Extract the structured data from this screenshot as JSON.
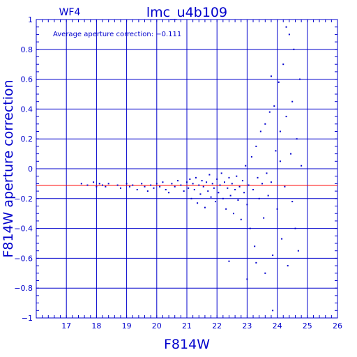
{
  "chart_data": {
    "type": "scatter",
    "title": "lmc_u4b109",
    "chip_label": "WF4",
    "annotation": "Average aperture correction: −0.111",
    "xlabel": "F814W",
    "ylabel": "F814W aperture correction",
    "xlim": [
      16,
      26
    ],
    "ylim": [
      -1,
      1
    ],
    "xticks": [
      "17",
      "18",
      "19",
      "20",
      "21",
      "22",
      "23",
      "24",
      "25",
      "26"
    ],
    "xtick_values": [
      17,
      18,
      19,
      20,
      21,
      22,
      23,
      24,
      25,
      26
    ],
    "yticks": [
      "1",
      "0.8",
      "0.6",
      "0.4",
      "0.2",
      "0",
      "−0.2",
      "−0.4",
      "−0.6",
      "−0.8",
      "−1"
    ],
    "ytick_values": [
      1,
      0.8,
      0.6,
      0.4,
      0.2,
      0,
      -0.2,
      -0.4,
      -0.6,
      -0.8,
      -1
    ],
    "grid": true,
    "reference_line": {
      "y": -0.111,
      "color": "#ff0000"
    },
    "colors": {
      "axes": "#0000cc",
      "points": "#0000cc",
      "reference": "#ff0000"
    },
    "points": [
      [
        17.5,
        -0.1
      ],
      [
        17.7,
        -0.11
      ],
      [
        17.9,
        -0.09
      ],
      [
        18.0,
        -0.12
      ],
      [
        18.1,
        -0.1
      ],
      [
        18.2,
        -0.11
      ],
      [
        18.3,
        -0.12
      ],
      [
        18.4,
        -0.1
      ],
      [
        18.7,
        -0.11
      ],
      [
        18.8,
        -0.13
      ],
      [
        19.0,
        -0.1
      ],
      [
        19.1,
        -0.12
      ],
      [
        19.2,
        -0.11
      ],
      [
        19.35,
        -0.14
      ],
      [
        19.5,
        -0.1
      ],
      [
        19.6,
        -0.12
      ],
      [
        19.7,
        -0.15
      ],
      [
        19.8,
        -0.11
      ],
      [
        19.9,
        -0.13
      ],
      [
        20.0,
        -0.1
      ],
      [
        20.1,
        -0.12
      ],
      [
        20.2,
        -0.09
      ],
      [
        20.3,
        -0.14
      ],
      [
        20.4,
        -0.16
      ],
      [
        20.5,
        -0.1
      ],
      [
        20.6,
        -0.12
      ],
      [
        20.7,
        -0.08
      ],
      [
        20.8,
        -0.11
      ],
      [
        20.9,
        -0.15
      ],
      [
        21.0,
        -0.09
      ],
      [
        21.05,
        -0.13
      ],
      [
        21.1,
        -0.07
      ],
      [
        21.15,
        -0.2
      ],
      [
        21.2,
        -0.1
      ],
      [
        21.25,
        -0.14
      ],
      [
        21.3,
        -0.06
      ],
      [
        21.35,
        -0.23
      ],
      [
        21.4,
        -0.11
      ],
      [
        21.45,
        -0.17
      ],
      [
        21.5,
        -0.08
      ],
      [
        21.55,
        -0.12
      ],
      [
        21.6,
        -0.26
      ],
      [
        21.65,
        -0.09
      ],
      [
        21.7,
        -0.15
      ],
      [
        21.75,
        -0.04
      ],
      [
        21.8,
        -0.19
      ],
      [
        21.85,
        -0.1
      ],
      [
        21.9,
        -0.13
      ],
      [
        21.95,
        -0.22
      ],
      [
        22.0,
        -0.07
      ],
      [
        22.05,
        -0.16
      ],
      [
        22.1,
        -0.11
      ],
      [
        22.15,
        -0.03
      ],
      [
        22.2,
        -0.2
      ],
      [
        22.25,
        -0.09
      ],
      [
        22.3,
        -0.27
      ],
      [
        22.35,
        -0.13
      ],
      [
        22.4,
        -0.06
      ],
      [
        22.45,
        -0.18
      ],
      [
        22.5,
        -0.1
      ],
      [
        22.55,
        -0.3
      ],
      [
        22.6,
        -0.14
      ],
      [
        22.65,
        -0.05
      ],
      [
        22.7,
        -0.21
      ],
      [
        22.75,
        -0.12
      ],
      [
        22.8,
        -0.34
      ],
      [
        22.85,
        -0.08
      ],
      [
        22.9,
        -0.16
      ],
      [
        22.95,
        0.02
      ],
      [
        23.0,
        -0.24
      ],
      [
        23.05,
        -0.11
      ],
      [
        23.1,
        -0.4
      ],
      [
        23.15,
        0.08
      ],
      [
        23.2,
        -0.14
      ],
      [
        23.25,
        -0.52
      ],
      [
        23.3,
        0.15
      ],
      [
        23.35,
        -0.06
      ],
      [
        23.4,
        -0.2
      ],
      [
        23.45,
        0.25
      ],
      [
        23.5,
        -0.1
      ],
      [
        23.55,
        -0.33
      ],
      [
        23.6,
        0.3
      ],
      [
        23.65,
        -0.03
      ],
      [
        23.7,
        -0.18
      ],
      [
        23.75,
        0.38
      ],
      [
        23.8,
        -0.09
      ],
      [
        23.85,
        -0.58
      ],
      [
        23.9,
        0.42
      ],
      [
        23.95,
        0.12
      ],
      [
        24.0,
        -0.27
      ],
      [
        24.05,
        0.58
      ],
      [
        24.1,
        0.05
      ],
      [
        24.15,
        -0.47
      ],
      [
        24.2,
        0.7
      ],
      [
        24.25,
        -0.12
      ],
      [
        24.3,
        0.35
      ],
      [
        24.35,
        -0.65
      ],
      [
        24.4,
        0.9
      ],
      [
        24.45,
        0.1
      ],
      [
        24.5,
        -0.22
      ],
      [
        24.55,
        0.8
      ],
      [
        24.6,
        -0.4
      ],
      [
        24.65,
        0.2
      ],
      [
        24.7,
        -0.55
      ],
      [
        24.75,
        0.6
      ],
      [
        24.8,
        0.02
      ],
      [
        23.3,
        -0.63
      ],
      [
        22.4,
        -0.62
      ],
      [
        23.6,
        -0.7
      ],
      [
        23.0,
        -0.74
      ],
      [
        23.85,
        -0.95
      ],
      [
        24.3,
        0.95
      ],
      [
        23.8,
        0.62
      ],
      [
        24.5,
        0.45
      ],
      [
        24.1,
        0.25
      ]
    ]
  }
}
